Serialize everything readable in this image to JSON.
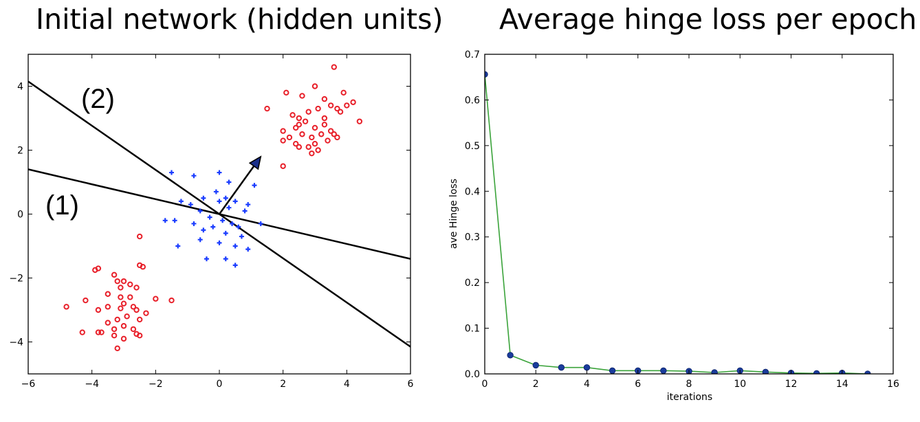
{
  "chart_data": [
    {
      "type": "scatter",
      "title": "Initial network (hidden units)",
      "xlim": [
        -6,
        6
      ],
      "ylim": [
        -5,
        5
      ],
      "xticks": [
        -6,
        -4,
        -2,
        0,
        2,
        4,
        6
      ],
      "yticks": [
        -4,
        -2,
        0,
        2,
        4
      ],
      "xtick_labels": [
        "−6",
        "−4",
        "−2",
        "0",
        "2",
        "4",
        "6"
      ],
      "ytick_labels": [
        "−4",
        "−2",
        "0",
        "2",
        "4"
      ],
      "series": [
        {
          "marker": "circle",
          "color": "#e8202a",
          "points": [
            [
              3.6,
              4.6
            ],
            [
              2.1,
              3.8
            ],
            [
              2.6,
              3.7
            ],
            [
              3.0,
              4.0
            ],
            [
              3.3,
              3.6
            ],
            [
              3.9,
              3.8
            ],
            [
              4.0,
              3.4
            ],
            [
              4.2,
              3.5
            ],
            [
              1.5,
              3.3
            ],
            [
              2.3,
              3.1
            ],
            [
              2.5,
              3.0
            ],
            [
              2.8,
              3.2
            ],
            [
              3.1,
              3.3
            ],
            [
              3.5,
              3.4
            ],
            [
              3.7,
              3.3
            ],
            [
              3.8,
              3.2
            ],
            [
              2.5,
              2.8
            ],
            [
              2.7,
              2.9
            ],
            [
              3.0,
              2.7
            ],
            [
              3.3,
              2.8
            ],
            [
              3.5,
              2.6
            ],
            [
              4.4,
              2.9
            ],
            [
              2.0,
              2.6
            ],
            [
              2.2,
              2.4
            ],
            [
              2.6,
              2.5
            ],
            [
              2.9,
              2.4
            ],
            [
              3.2,
              2.5
            ],
            [
              3.4,
              2.3
            ],
            [
              3.6,
              2.5
            ],
            [
              2.0,
              2.3
            ],
            [
              2.4,
              2.2
            ],
            [
              2.8,
              2.1
            ],
            [
              3.1,
              2.0
            ],
            [
              3.7,
              2.4
            ],
            [
              2.5,
              2.1
            ],
            [
              3.0,
              2.2
            ],
            [
              2.9,
              1.9
            ],
            [
              2.0,
              1.5
            ],
            [
              3.3,
              3.0
            ],
            [
              2.4,
              2.7
            ],
            [
              -2.5,
              -0.7
            ],
            [
              -2.5,
              -1.6
            ],
            [
              -2.4,
              -1.65
            ],
            [
              -3.8,
              -1.7
            ],
            [
              -3.9,
              -1.75
            ],
            [
              -3.3,
              -1.9
            ],
            [
              -3.2,
              -2.1
            ],
            [
              -3.0,
              -2.1
            ],
            [
              -3.1,
              -2.3
            ],
            [
              -2.8,
              -2.2
            ],
            [
              -2.6,
              -2.3
            ],
            [
              -3.5,
              -2.5
            ],
            [
              -3.1,
              -2.6
            ],
            [
              -4.2,
              -2.7
            ],
            [
              -2.0,
              -2.65
            ],
            [
              -1.5,
              -2.7
            ],
            [
              -3.5,
              -2.9
            ],
            [
              -3.0,
              -2.8
            ],
            [
              -2.7,
              -2.9
            ],
            [
              -2.6,
              -3.0
            ],
            [
              -2.3,
              -3.1
            ],
            [
              -4.8,
              -2.9
            ],
            [
              -3.8,
              -3.0
            ],
            [
              -3.2,
              -3.3
            ],
            [
              -2.9,
              -3.2
            ],
            [
              -2.5,
              -3.3
            ],
            [
              -3.3,
              -3.6
            ],
            [
              -3.5,
              -3.4
            ],
            [
              -3.0,
              -3.5
            ],
            [
              -2.7,
              -3.6
            ],
            [
              -2.5,
              -3.8
            ],
            [
              -4.3,
              -3.7
            ],
            [
              -3.8,
              -3.7
            ],
            [
              -3.7,
              -3.7
            ],
            [
              -3.3,
              -3.8
            ],
            [
              -3.0,
              -3.9
            ],
            [
              -3.2,
              -4.2
            ],
            [
              -2.8,
              -2.6
            ],
            [
              -3.1,
              -2.95
            ],
            [
              -2.6,
              -3.75
            ]
          ]
        },
        {
          "marker": "plus",
          "color": "#1a3cff",
          "points": [
            [
              -1.5,
              1.3
            ],
            [
              -0.8,
              1.2
            ],
            [
              0.0,
              1.3
            ],
            [
              0.3,
              1.0
            ],
            [
              1.1,
              0.9
            ],
            [
              -1.2,
              0.4
            ],
            [
              -0.9,
              0.3
            ],
            [
              -0.5,
              0.5
            ],
            [
              0.0,
              0.4
            ],
            [
              0.2,
              0.5
            ],
            [
              0.5,
              0.4
            ],
            [
              0.9,
              0.3
            ],
            [
              -0.6,
              0.1
            ],
            [
              -0.3,
              -0.1
            ],
            [
              0.1,
              -0.2
            ],
            [
              0.4,
              -0.3
            ],
            [
              0.8,
              0.1
            ],
            [
              1.3,
              -0.3
            ],
            [
              -1.7,
              -0.2
            ],
            [
              -1.4,
              -0.2
            ],
            [
              -0.8,
              -0.3
            ],
            [
              -0.5,
              -0.5
            ],
            [
              0.2,
              -0.6
            ],
            [
              0.6,
              -0.4
            ],
            [
              -1.3,
              -1.0
            ],
            [
              -0.6,
              -0.8
            ],
            [
              0.0,
              -0.9
            ],
            [
              0.5,
              -1.0
            ],
            [
              0.9,
              -1.1
            ],
            [
              -0.4,
              -1.4
            ],
            [
              0.2,
              -1.4
            ],
            [
              0.5,
              -1.6
            ],
            [
              -0.1,
              0.7
            ],
            [
              0.3,
              0.2
            ],
            [
              -0.2,
              -0.4
            ],
            [
              0.7,
              -0.7
            ]
          ]
        }
      ],
      "lines": [
        {
          "label": "(1)",
          "x": [
            -6,
            6
          ],
          "y": [
            1.4,
            -1.4
          ]
        },
        {
          "label": "(2)",
          "x": [
            -6,
            6
          ],
          "y": [
            4.15,
            -4.15
          ]
        }
      ],
      "arrow": {
        "from": [
          0,
          0
        ],
        "to": [
          1.3,
          1.8
        ]
      },
      "annotations": [
        "(2)",
        "(1)"
      ]
    },
    {
      "type": "line",
      "title": "Average hinge loss per epoch",
      "xlabel": "iterations",
      "ylabel": "ave Hinge loss",
      "xlim": [
        0,
        16
      ],
      "ylim": [
        0.0,
        0.7
      ],
      "xticks": [
        0,
        2,
        4,
        6,
        8,
        10,
        12,
        14,
        16
      ],
      "yticks": [
        0.0,
        0.1,
        0.2,
        0.3,
        0.4,
        0.5,
        0.6,
        0.7
      ],
      "xtick_labels": [
        "0",
        "2",
        "4",
        "6",
        "8",
        "10",
        "12",
        "14",
        "16"
      ],
      "ytick_labels": [
        "0.0",
        "0.1",
        "0.2",
        "0.3",
        "0.4",
        "0.5",
        "0.6",
        "0.7"
      ],
      "line_color": "#3aa33a",
      "marker_color": "#1a3c9c",
      "x": [
        0,
        1,
        2,
        3,
        4,
        5,
        6,
        7,
        8,
        9,
        10,
        11,
        12,
        13,
        14,
        15
      ],
      "y": [
        0.656,
        0.041,
        0.019,
        0.014,
        0.014,
        0.007,
        0.007,
        0.007,
        0.006,
        0.003,
        0.007,
        0.004,
        0.002,
        0.001,
        0.002,
        0.0
      ]
    }
  ]
}
